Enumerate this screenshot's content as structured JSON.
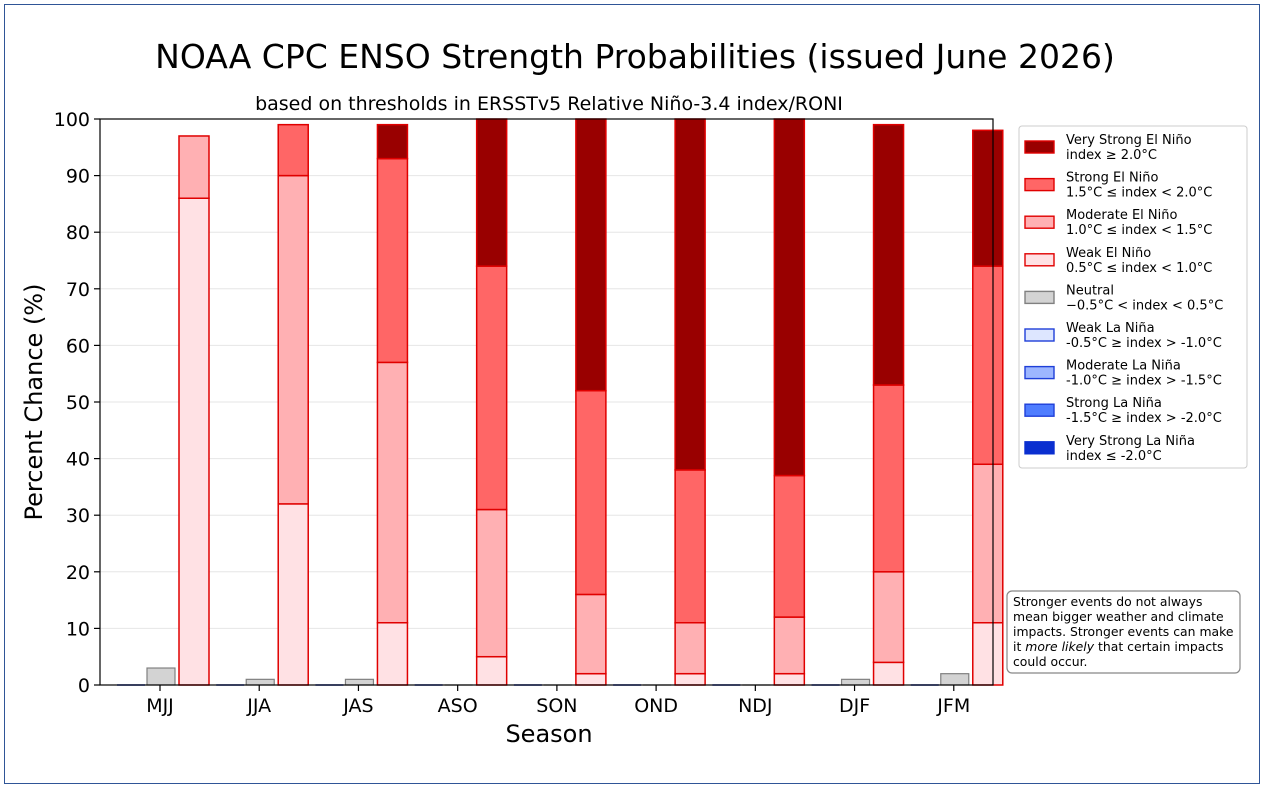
{
  "chart_data": {
    "type": "bar",
    "title": "NOAA CPC ENSO Strength Probabilities (issued June 2026)",
    "subtitle": "based on thresholds in ERSSTv5 Relative Niño-3.4 index/RONI",
    "xlabel": "Season",
    "ylabel": "Percent Chance (%)",
    "ylim": [
      0,
      100
    ],
    "yticks": [
      0,
      10,
      20,
      30,
      40,
      50,
      60,
      70,
      80,
      90,
      100
    ],
    "grid": "horizontal",
    "legend_position": "right",
    "categories": [
      "MJJ",
      "JJA",
      "JAS",
      "ASO",
      "SON",
      "OND",
      "NDJ",
      "DJF",
      "JFM"
    ],
    "neutral": {
      "name": "Neutral",
      "range": "−0.5°C < index < 0.5°C",
      "color": "#d3d3d3",
      "edge": "#808080",
      "values": [
        3,
        1,
        1,
        0,
        0,
        0,
        0,
        1,
        2
      ]
    },
    "la_nina_series": [
      {
        "name": "Weak La Niña",
        "range": "-0.5°C ≥ index > -1.0°C",
        "color": "#dde6ff",
        "edge": "#1f3fd8",
        "values": [
          0,
          0,
          0,
          0,
          0,
          0,
          0,
          0,
          0
        ]
      },
      {
        "name": "Moderate La Niña",
        "range": "-1.0°C ≥ index > -1.5°C",
        "color": "#9db6ff",
        "edge": "#1f3fd8",
        "values": [
          0,
          0,
          0,
          0,
          0,
          0,
          0,
          0,
          0
        ]
      },
      {
        "name": "Strong La Niña",
        "range": "-1.5°C ≥ index > -2.0°C",
        "color": "#4f7dff",
        "edge": "#1f3fd8",
        "values": [
          0,
          0,
          0,
          0,
          0,
          0,
          0,
          0,
          0
        ]
      },
      {
        "name": "Very Strong La Niña",
        "range": "index ≤ -2.0°C",
        "color": "#0a2fd0",
        "edge": "#0a2fd0",
        "values": [
          0,
          0,
          0,
          0,
          0,
          0,
          0,
          0,
          0
        ]
      }
    ],
    "el_nino_series": [
      {
        "name": "Weak El Niño",
        "range": "0.5°C ≤ index < 1.0°C",
        "color": "#ffe1e4",
        "edge": "#e00000",
        "values": [
          86,
          32,
          11,
          5,
          2,
          2,
          2,
          4,
          11
        ]
      },
      {
        "name": "Moderate El Niño",
        "range": "1.0°C ≤ index < 1.5°C",
        "color": "#ffb0b3",
        "edge": "#e00000",
        "values": [
          11,
          58,
          46,
          26,
          14,
          9,
          10,
          16,
          28
        ]
      },
      {
        "name": "Strong El Niño",
        "range": "1.5°C ≤ index < 2.0°C",
        "color": "#ff6666",
        "edge": "#e00000",
        "values": [
          0,
          9,
          36,
          43,
          36,
          27,
          25,
          33,
          35
        ]
      },
      {
        "name": "Very Strong El Niño",
        "range": "index ≥ 2.0°C",
        "color": "#990000",
        "edge": "#e00000",
        "values": [
          0,
          0,
          6,
          26,
          48,
          62,
          63,
          46,
          24
        ]
      }
    ],
    "legend_order": [
      "Very Strong El Niño",
      "Strong El Niño",
      "Moderate El Niño",
      "Weak El Niño",
      "Neutral",
      "Weak La Niña",
      "Moderate La Niña",
      "Strong La Niña",
      "Very Strong La Niña"
    ],
    "note": {
      "before_italic": "Stronger events do not always mean bigger weather and climate impacts. Stronger events can make it ",
      "italic": "more likely",
      "after_italic": " that certain impacts could occur."
    }
  }
}
